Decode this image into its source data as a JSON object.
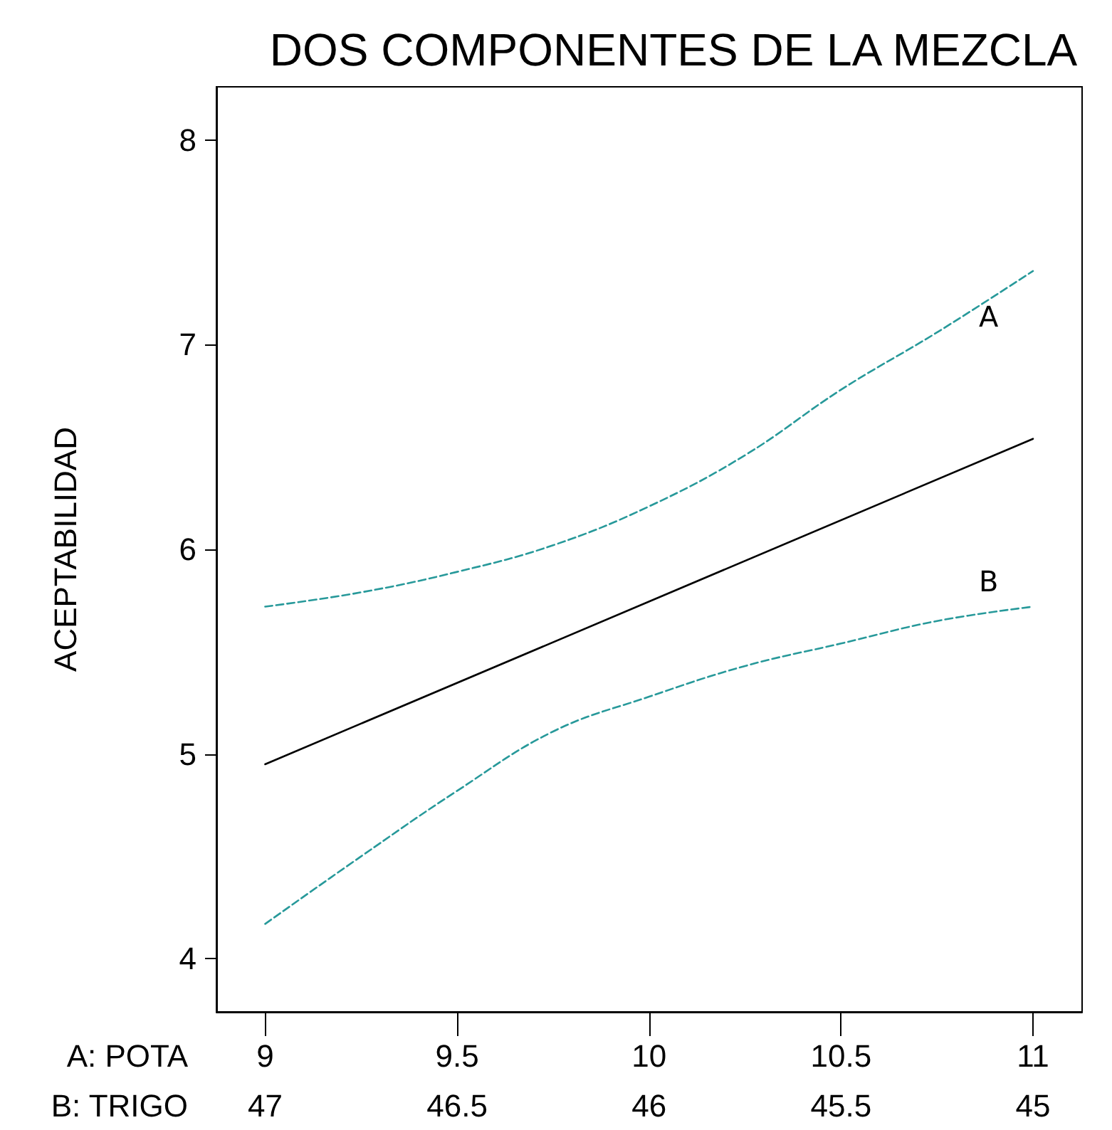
{
  "chart_data": {
    "type": "line",
    "title": "DOS COMPONENTES DE LA MEZCLA",
    "ylabel": "ACEPTABILIDAD",
    "xlabel": "A: POTA",
    "x2label": "B: TRIGO",
    "xlim": [
      8.873,
      11.128
    ],
    "xticks": [
      9,
      9.5,
      10,
      10.5,
      11
    ],
    "x2lim": [
      47.127,
      44.872
    ],
    "x2ticks": [
      47,
      46.5,
      46,
      45.5,
      45
    ],
    "ylim": [
      3.74,
      8.26
    ],
    "yticks": [
      4,
      5,
      6,
      7,
      8
    ],
    "grid": false,
    "legend": false,
    "marker": "none",
    "series": [
      {
        "color": "#000000",
        "line_style": "solid",
        "x": [
          9,
          11
        ],
        "values": [
          4.95,
          6.54
        ]
      },
      {
        "name": "A",
        "color": "#27999a",
        "line_style": "dashed",
        "x": [
          9,
          9.25,
          9.5,
          9.75,
          10,
          10.25,
          10.5,
          10.75,
          11
        ],
        "values": [
          5.72,
          5.79,
          5.89,
          6.02,
          6.21,
          6.46,
          6.78,
          7.06,
          7.36
        ]
      },
      {
        "name": "B",
        "color": "#27999a",
        "line_style": "dashed",
        "x": [
          9,
          9.25,
          9.5,
          9.75,
          10,
          10.25,
          10.5,
          10.75,
          11
        ],
        "values": [
          4.17,
          4.5,
          4.82,
          5.11,
          5.28,
          5.43,
          5.54,
          5.65,
          5.72
        ]
      }
    ]
  }
}
